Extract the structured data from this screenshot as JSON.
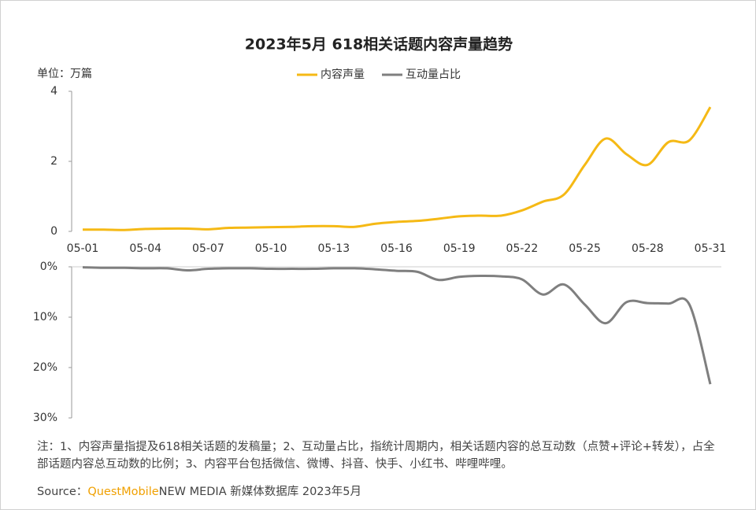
{
  "chart_data": [
    {
      "type": "line",
      "title": "2023年5月 618相关话题内容声量趋势",
      "y_label": "单位：万篇",
      "categories": [
        "05-01",
        null,
        null,
        "05-04",
        null,
        null,
        "05-07",
        null,
        null,
        "05-10",
        null,
        null,
        "05-13",
        null,
        null,
        "05-16",
        null,
        null,
        "05-19",
        null,
        null,
        "05-22",
        null,
        null,
        "05-25",
        null,
        null,
        "05-28",
        null,
        null,
        "05-31"
      ],
      "series": [
        {
          "name": "内容声量",
          "color": "#f5b915",
          "values": [
            0.05,
            0.05,
            0.04,
            0.07,
            0.08,
            0.08,
            0.06,
            0.1,
            0.11,
            0.12,
            0.13,
            0.15,
            0.15,
            0.13,
            0.22,
            0.27,
            0.3,
            0.36,
            0.43,
            0.45,
            0.45,
            0.6,
            0.85,
            1.05,
            1.9,
            2.65,
            2.2,
            1.9,
            2.55,
            2.6,
            3.55
          ]
        }
      ],
      "ylim": [
        0,
        4
      ],
      "yticks": [
        0,
        2,
        4
      ],
      "grid": false
    },
    {
      "type": "line",
      "inverted": true,
      "series": [
        {
          "name": "互动量占比",
          "color": "#7f7f7f",
          "values": [
            0.1,
            0.2,
            0.2,
            0.3,
            0.3,
            0.7,
            0.4,
            0.3,
            0.3,
            0.4,
            0.4,
            0.4,
            0.3,
            0.3,
            0.5,
            0.8,
            1.0,
            2.6,
            2.0,
            1.8,
            1.9,
            2.5,
            5.5,
            3.5,
            7.5,
            11.2,
            7.0,
            7.2,
            7.3,
            7.5,
            23.3
          ]
        }
      ],
      "ylim": [
        0,
        30
      ],
      "yticks": [
        {
          "value": 0,
          "label": "0%"
        },
        {
          "value": 10,
          "label": "10%"
        },
        {
          "value": 20,
          "label": "20%"
        },
        {
          "value": 30,
          "label": "30%"
        }
      ],
      "grid": false
    }
  ],
  "note": "注：1、内容声量指提及618相关话题的发稿量；2、互动量占比，指统计周期内，相关话题内容的总互动数（点赞+评论+转发），占全部话题内容总互动数的比例；3、内容平台包括微信、微博、抖音、快手、小红书、哔哩哔哩。",
  "source": {
    "label": "Source：",
    "brand": "QuestMobile",
    "text": "NEW MEDIA 新媒体数据库 2023年5月"
  }
}
